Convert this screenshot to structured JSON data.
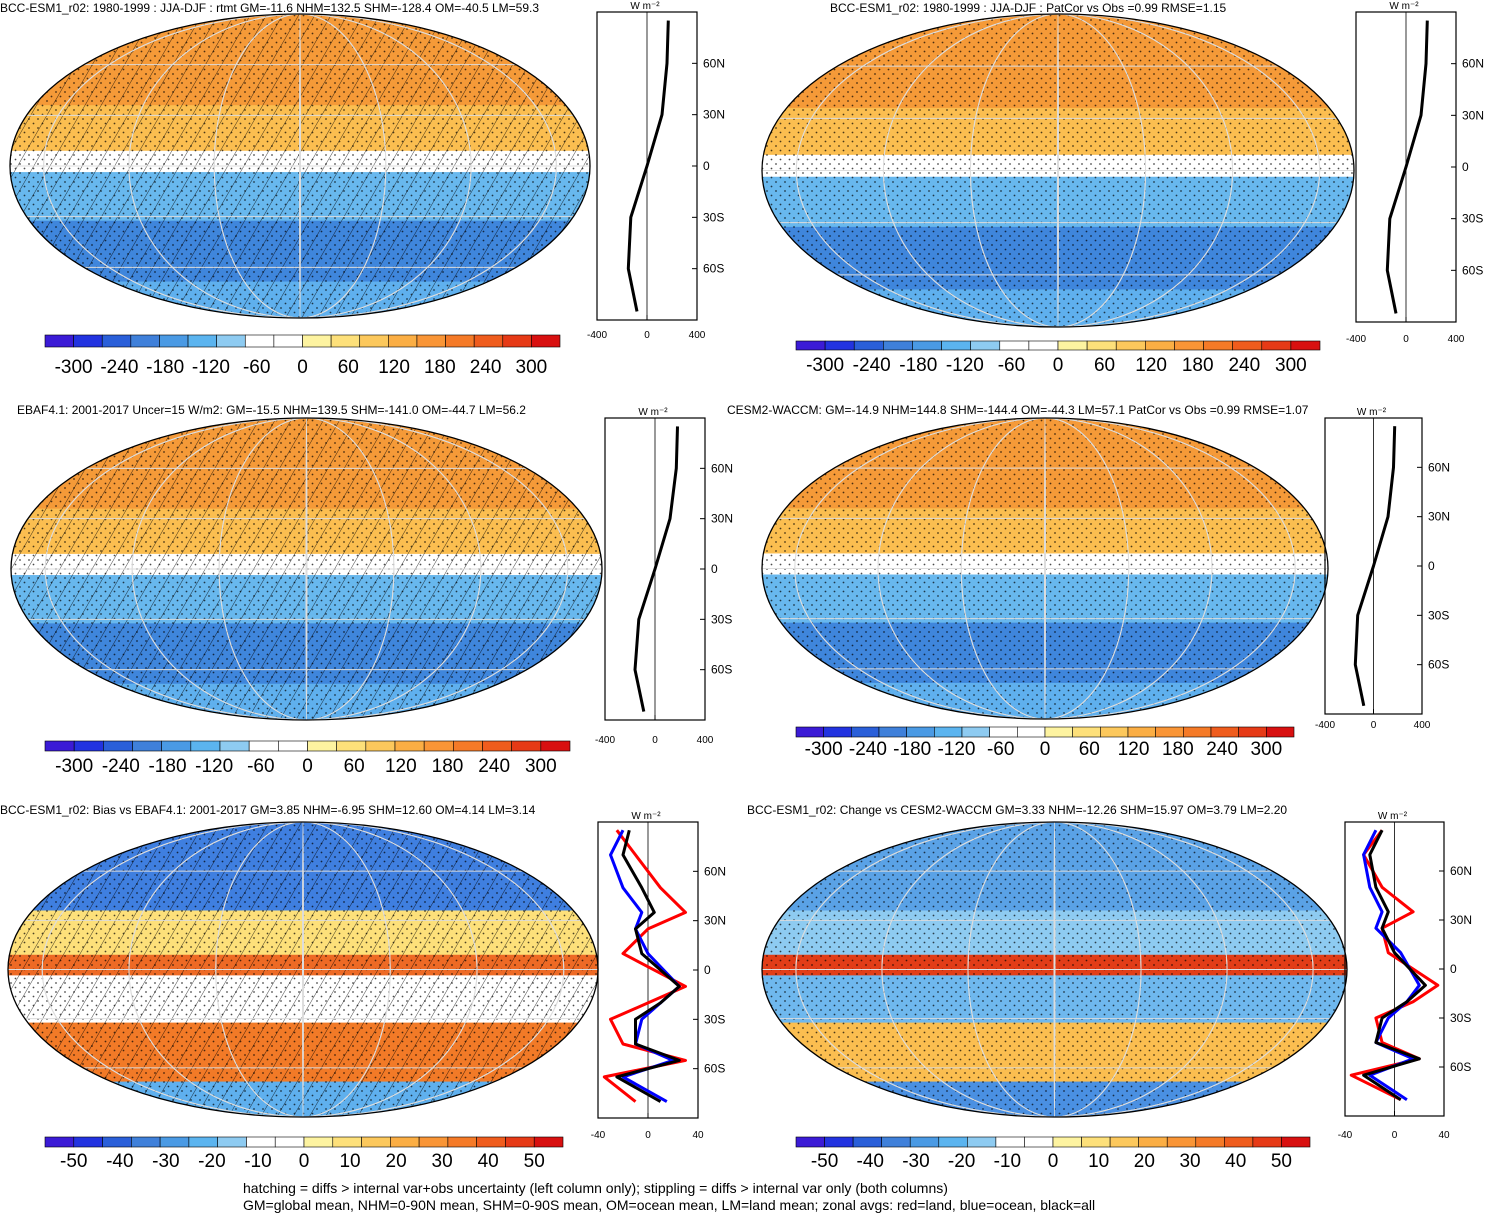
{
  "chart_data": [
    {
      "type": "heatmap",
      "id": "p1",
      "title": "BCC-ESM1_r02: 1980-1999 : JJA-DJF : rtmt GM=-11.6 NHM=132.5 SHM=-128.4 OM=-40.5 LM=59.3",
      "colorbar_ticks": [
        "-300",
        "-240",
        "-180",
        "-120",
        "-60",
        "0",
        "60",
        "120",
        "180",
        "240",
        "300"
      ],
      "zonal_x_ticks": [
        "-400",
        "0",
        "400"
      ],
      "zonal_xlim": [
        -400,
        400
      ],
      "zonal_unit": "W m⁻²",
      "lat_ticks": [
        "60N",
        "30N",
        "0",
        "30S",
        "60S"
      ],
      "zonal_series": [
        {
          "lat": [
            85,
            60,
            30,
            0,
            -30,
            -60,
            -85
          ],
          "values": [
            170,
            160,
            120,
            0,
            -130,
            -150,
            -80
          ]
        }
      ]
    },
    {
      "type": "heatmap",
      "id": "p2",
      "title": "BCC-ESM1_r02: 1980-1999 : JJA-DJF : PatCor vs Obs =0.99 RMSE=1.15",
      "colorbar_ticks": [
        "-300",
        "-240",
        "-180",
        "-120",
        "-60",
        "0",
        "60",
        "120",
        "180",
        "240",
        "300"
      ],
      "zonal_x_ticks": [
        "-400",
        "0",
        "400"
      ],
      "zonal_xlim": [
        -400,
        400
      ],
      "zonal_unit": "W m⁻²",
      "lat_ticks": [
        "60N",
        "30N",
        "0",
        "30S",
        "60S"
      ],
      "zonal_series": [
        {
          "lat": [
            85,
            60,
            30,
            0,
            -30,
            -60,
            -85
          ],
          "values": [
            170,
            160,
            120,
            0,
            -130,
            -150,
            -80
          ]
        }
      ]
    },
    {
      "type": "heatmap",
      "id": "p3",
      "title": "EBAF4.1: 2001-2017 Uncer=15 W/m2: GM=-15.5 NHM=139.5 SHM=-141.0 OM=-44.7 LM=56.2",
      "colorbar_ticks": [
        "-300",
        "-240",
        "-180",
        "-120",
        "-60",
        "0",
        "60",
        "120",
        "180",
        "240",
        "300"
      ],
      "zonal_x_ticks": [
        "-400",
        "0",
        "400"
      ],
      "zonal_xlim": [
        -400,
        400
      ],
      "zonal_unit": "W m⁻²",
      "lat_ticks": [
        "60N",
        "30N",
        "0",
        "30S",
        "60S"
      ],
      "zonal_series": [
        {
          "lat": [
            85,
            60,
            30,
            0,
            -30,
            -60,
            -85
          ],
          "values": [
            180,
            170,
            120,
            0,
            -130,
            -160,
            -90
          ]
        }
      ]
    },
    {
      "type": "heatmap",
      "id": "p4",
      "title": "CESM2-WACCM: GM=-14.9 NHM=144.8 SHM=-144.4 OM=-44.3 LM=57.1 PatCor vs Obs =0.99 RMSE=1.07",
      "colorbar_ticks": [
        "-300",
        "-240",
        "-180",
        "-120",
        "-60",
        "0",
        "60",
        "120",
        "180",
        "240",
        "300"
      ],
      "zonal_x_ticks": [
        "-400",
        "0",
        "400"
      ],
      "zonal_xlim": [
        -400,
        400
      ],
      "zonal_unit": "W m⁻²",
      "lat_ticks": [
        "60N",
        "30N",
        "0",
        "30S",
        "60S"
      ],
      "zonal_series": [
        {
          "lat": [
            85,
            60,
            30,
            0,
            -30,
            -60,
            -85
          ],
          "values": [
            175,
            165,
            120,
            0,
            -130,
            -150,
            -80
          ]
        }
      ]
    },
    {
      "type": "heatmap",
      "id": "p5",
      "title": "BCC-ESM1_r02: Bias vs EBAF4.1: 2001-2017 GM=3.85 NHM=-6.95 SHM=12.60 OM=4.14 LM=3.14",
      "colorbar_ticks": [
        "-50",
        "-40",
        "-30",
        "-20",
        "-10",
        "0",
        "10",
        "20",
        "30",
        "40",
        "50"
      ],
      "zonal_x_ticks": [
        "-40",
        "0",
        "40"
      ],
      "zonal_xlim": [
        -40,
        40
      ],
      "zonal_unit": "W m⁻²",
      "lat_ticks": [
        "60N",
        "30N",
        "0",
        "30S",
        "60S"
      ],
      "zonal_series": [
        {
          "name": "land",
          "color": "#ff0000",
          "lat": [
            85,
            70,
            50,
            35,
            25,
            10,
            -10,
            -20,
            -30,
            -45,
            -55,
            -65,
            -80
          ],
          "values": [
            -25,
            -10,
            10,
            30,
            0,
            -20,
            30,
            0,
            -30,
            -20,
            30,
            -35,
            -10
          ]
        },
        {
          "name": "ocean",
          "color": "#0000ff",
          "lat": [
            85,
            70,
            50,
            35,
            25,
            10,
            -10,
            -20,
            -30,
            -45,
            -55,
            -65,
            -80
          ],
          "values": [
            -20,
            -30,
            -20,
            -5,
            -10,
            0,
            25,
            10,
            -5,
            -10,
            20,
            -20,
            15
          ]
        },
        {
          "name": "all",
          "color": "#000000",
          "lat": [
            85,
            70,
            50,
            35,
            25,
            10,
            -10,
            -20,
            -30,
            -45,
            -55,
            -65,
            -80
          ],
          "values": [
            -15,
            -20,
            -5,
            5,
            -10,
            -5,
            25,
            10,
            -10,
            -10,
            25,
            -25,
            10
          ]
        }
      ]
    },
    {
      "type": "heatmap",
      "id": "p6",
      "title": "BCC-ESM1_r02: Change vs CESM2-WACCM GM=3.33 NHM=-12.26 SHM=15.97 OM=3.79 LM=2.20",
      "colorbar_ticks": [
        "-50",
        "-40",
        "-30",
        "-20",
        "-10",
        "0",
        "10",
        "20",
        "30",
        "40",
        "50"
      ],
      "zonal_x_ticks": [
        "-40",
        "0",
        "40"
      ],
      "zonal_xlim": [
        -40,
        40
      ],
      "zonal_unit": "W m⁻²",
      "lat_ticks": [
        "60N",
        "30N",
        "0",
        "30S",
        "60S"
      ],
      "zonal_series": [
        {
          "name": "land",
          "color": "#ff0000",
          "lat": [
            85,
            70,
            50,
            35,
            25,
            10,
            -10,
            -20,
            -30,
            -45,
            -55,
            -65,
            -80
          ],
          "values": [
            -10,
            -25,
            -10,
            15,
            -10,
            -5,
            35,
            15,
            -15,
            -10,
            20,
            -35,
            5
          ]
        },
        {
          "name": "ocean",
          "color": "#0000ff",
          "lat": [
            85,
            70,
            50,
            35,
            25,
            10,
            -10,
            -20,
            -30,
            -45,
            -55,
            -65,
            -80
          ],
          "values": [
            -15,
            -25,
            -20,
            -10,
            -15,
            5,
            20,
            10,
            -5,
            -15,
            15,
            -20,
            10
          ]
        },
        {
          "name": "all",
          "color": "#000000",
          "lat": [
            85,
            70,
            50,
            35,
            25,
            10,
            -10,
            -20,
            -30,
            -45,
            -55,
            -65,
            -80
          ],
          "values": [
            -10,
            -20,
            -15,
            -5,
            -10,
            0,
            25,
            10,
            -10,
            -15,
            20,
            -25,
            5
          ]
        }
      ]
    }
  ],
  "colorbar_colors": [
    "#3b1bd6",
    "#2233e0",
    "#2a5fd9",
    "#3f80da",
    "#4a9ae4",
    "#5bb4ef",
    "#8ecbf1",
    "#ffffff",
    "#ffffff",
    "#fdf3a0",
    "#fde07a",
    "#fcc85c",
    "#fbae44",
    "#f99536",
    "#f57a27",
    "#ef5c1d",
    "#e63a16",
    "#d81010"
  ],
  "map_colors": {
    "p1": {
      "n": "#f59a38",
      "nm": "#fbbe50",
      "eq": "#ffffff",
      "sm": "#68b8ee",
      "s": "#3f86dc",
      "sp": "#5fb0ee"
    },
    "p2": {
      "n": "#f59a38",
      "nm": "#fbbe50",
      "eq": "#ffffff",
      "sm": "#68b8ee",
      "s": "#3f86dc",
      "sp": "#5fb0ee"
    },
    "p3": {
      "n": "#f59a38",
      "nm": "#fbbe50",
      "eq": "#ffffff",
      "sm": "#68b8ee",
      "s": "#3f86dc",
      "sp": "#5fb0ee"
    },
    "p4": {
      "n": "#f59a38",
      "nm": "#fbbe50",
      "eq": "#ffffff",
      "sm": "#68b8ee",
      "s": "#3f86dc",
      "sp": "#5fb0ee"
    },
    "p5": {
      "n": "#3f7fe0",
      "nm": "#fde07a",
      "eq": "#ee6a25",
      "sm": "#ffffff",
      "s": "#f27a27",
      "sp": "#5fb0ee"
    },
    "p6": {
      "n": "#5aa2e6",
      "nm": "#8ecbf1",
      "eq": "#e23d17",
      "sm": "#6fb8ee",
      "s": "#fbbe50",
      "sp": "#4a90e2"
    }
  },
  "footer": {
    "line1": "hatching = diffs > internal var+obs uncertainty (left column only); stippling = diffs > internal var only (both columns)",
    "line2": "GM=global mean, NHM=0-90N mean, SHM=0-90S mean, OM=ocean mean, LM=land mean; zonal avgs: red=land, blue=ocean, black=all"
  }
}
